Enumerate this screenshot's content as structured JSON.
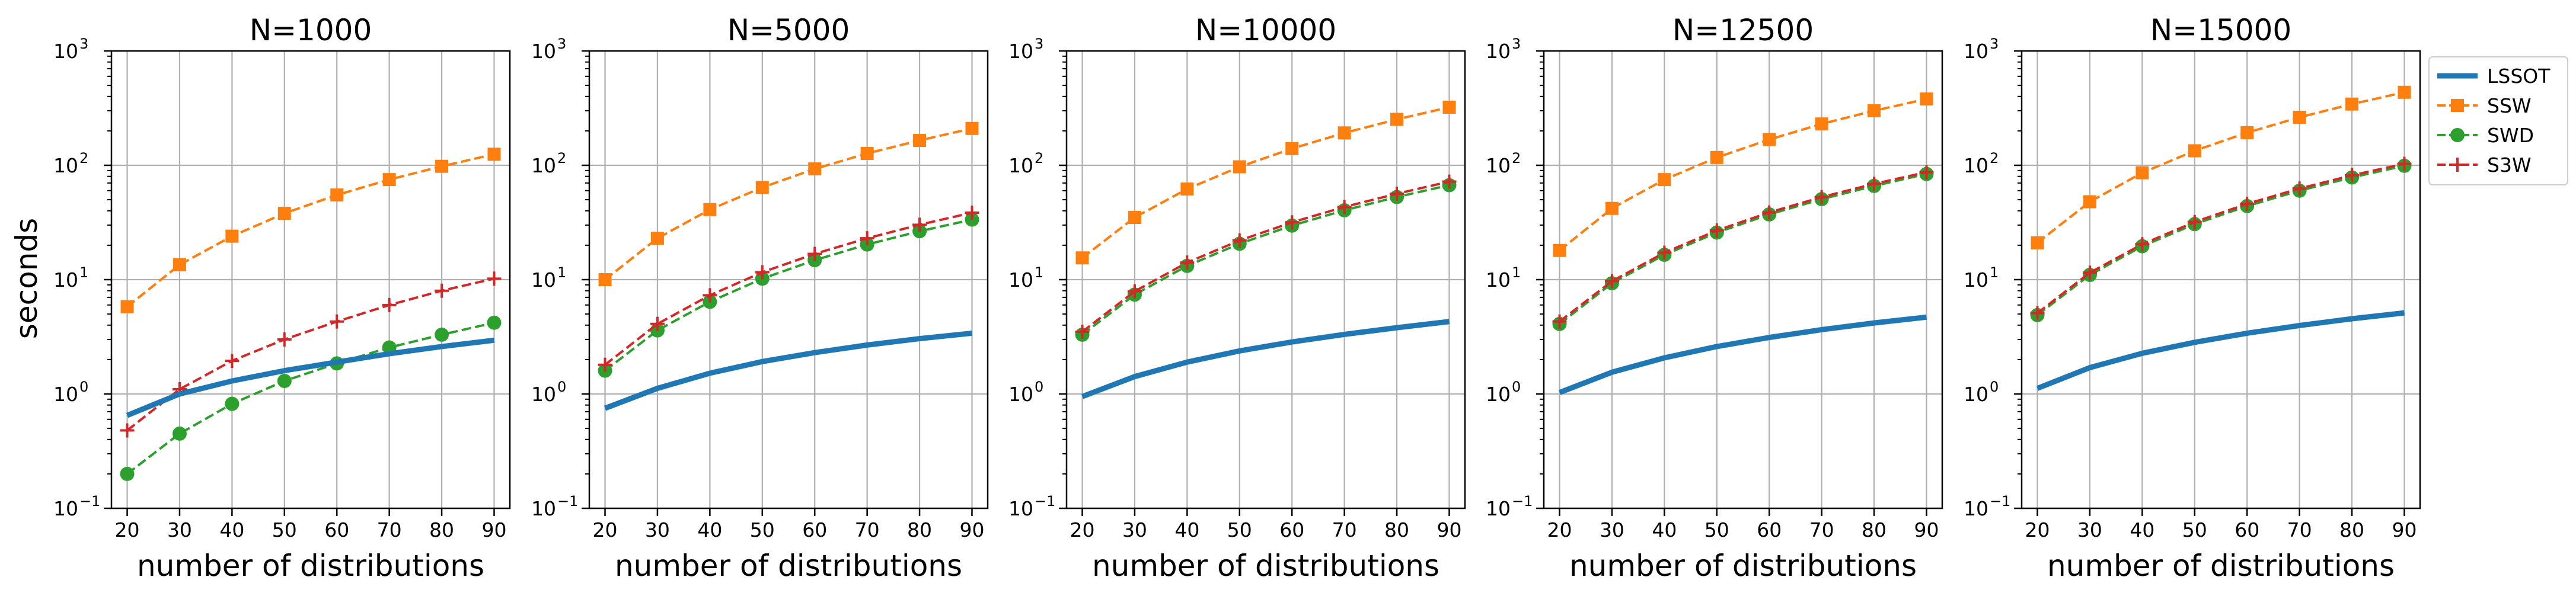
{
  "colors": {
    "LSSOT": "#1f77b4",
    "SSW": "#ff7f0e",
    "SWD": "#2ca02c",
    "S3W": "#d62728",
    "grid": "#b0b0b0",
    "frame": "#000000"
  },
  "shared": {
    "ylabel": "seconds",
    "xlabel": "number of distributions",
    "x_ticks": [
      20,
      30,
      40,
      50,
      60,
      70,
      80,
      90
    ],
    "y_ticks": [
      {
        "value": 0.1,
        "base": "10",
        "exp": "−1"
      },
      {
        "value": 1,
        "base": "10",
        "exp": "0"
      },
      {
        "value": 10,
        "base": "10",
        "exp": "1"
      },
      {
        "value": 100,
        "base": "10",
        "exp": "2"
      },
      {
        "value": 1000,
        "base": "10",
        "exp": "3"
      }
    ]
  },
  "legend": {
    "placement": "outside-right-top",
    "entries": [
      {
        "name": "LSSOT",
        "style": "solid-thick",
        "marker": "none"
      },
      {
        "name": "SSW",
        "style": "dashed",
        "marker": "square"
      },
      {
        "name": "SWD",
        "style": "dashed",
        "marker": "circle"
      },
      {
        "name": "S3W",
        "style": "dashed",
        "marker": "plus"
      }
    ]
  },
  "chart_data": [
    {
      "type": "line",
      "title": "N=1000",
      "xlabel": "number of distributions",
      "ylabel": "seconds",
      "yscale": "log",
      "ylim": [
        0.1,
        1000
      ],
      "xlim": [
        17,
        93
      ],
      "grid": true,
      "x": [
        20,
        30,
        40,
        50,
        60,
        70,
        80,
        90
      ],
      "series": [
        {
          "name": "LSSOT",
          "values": [
            0.65,
            1.0,
            1.3,
            1.6,
            1.9,
            2.25,
            2.6,
            2.95
          ]
        },
        {
          "name": "SSW",
          "values": [
            5.8,
            13.5,
            24,
            38,
            55,
            75,
            98,
            125
          ]
        },
        {
          "name": "SWD",
          "values": [
            0.2,
            0.45,
            0.82,
            1.3,
            1.85,
            2.55,
            3.3,
            4.2
          ]
        },
        {
          "name": "S3W",
          "values": [
            0.48,
            1.1,
            1.95,
            3.0,
            4.3,
            6.0,
            8.0,
            10.2
          ]
        }
      ]
    },
    {
      "type": "line",
      "title": "N=5000",
      "xlabel": "number of distributions",
      "ylabel": "",
      "yscale": "log",
      "ylim": [
        0.1,
        1000
      ],
      "xlim": [
        17,
        93
      ],
      "grid": true,
      "x": [
        20,
        30,
        40,
        50,
        60,
        70,
        80,
        90
      ],
      "series": [
        {
          "name": "LSSOT",
          "values": [
            0.75,
            1.12,
            1.52,
            1.92,
            2.3,
            2.68,
            3.05,
            3.4
          ]
        },
        {
          "name": "SSW",
          "values": [
            10,
            23,
            41,
            64,
            93,
            127,
            165,
            210
          ]
        },
        {
          "name": "SWD",
          "values": [
            1.6,
            3.6,
            6.4,
            10.2,
            14.8,
            20.3,
            26.5,
            33.5
          ]
        },
        {
          "name": "S3W",
          "values": [
            1.8,
            4.1,
            7.3,
            11.6,
            16.8,
            23,
            30.2,
            38.5
          ]
        }
      ]
    },
    {
      "type": "line",
      "title": "N=10000",
      "xlabel": "number of distributions",
      "ylabel": "",
      "yscale": "log",
      "ylim": [
        0.1,
        1000
      ],
      "xlim": [
        17,
        93
      ],
      "grid": true,
      "x": [
        20,
        30,
        40,
        50,
        60,
        70,
        80,
        90
      ],
      "series": [
        {
          "name": "LSSOT",
          "values": [
            0.95,
            1.42,
            1.9,
            2.38,
            2.85,
            3.32,
            3.8,
            4.3
          ]
        },
        {
          "name": "SSW",
          "values": [
            15.5,
            35,
            62,
            97,
            140,
            192,
            252,
            322
          ]
        },
        {
          "name": "SWD",
          "values": [
            3.3,
            7.4,
            13.2,
            20.6,
            29.7,
            40.4,
            52.8,
            67
          ]
        },
        {
          "name": "S3W",
          "values": [
            3.5,
            7.9,
            14.1,
            22,
            31.7,
            43.2,
            56.4,
            72
          ]
        }
      ]
    },
    {
      "type": "line",
      "title": "N=12500",
      "xlabel": "number of distributions",
      "ylabel": "",
      "yscale": "log",
      "ylim": [
        0.1,
        1000
      ],
      "xlim": [
        17,
        93
      ],
      "grid": true,
      "x": [
        20,
        30,
        40,
        50,
        60,
        70,
        80,
        90
      ],
      "series": [
        {
          "name": "LSSOT",
          "values": [
            1.03,
            1.55,
            2.07,
            2.6,
            3.12,
            3.65,
            4.18,
            4.7
          ]
        },
        {
          "name": "SSW",
          "values": [
            18,
            42,
            75,
            117,
            168,
            230,
            300,
            380
          ]
        },
        {
          "name": "SWD",
          "values": [
            4.1,
            9.3,
            16.5,
            25.8,
            37.2,
            50.6,
            66,
            84
          ]
        },
        {
          "name": "S3W",
          "values": [
            4.3,
            9.7,
            17.2,
            26.9,
            38.7,
            52.7,
            68.8,
            87
          ]
        }
      ]
    },
    {
      "type": "line",
      "title": "N=15000",
      "xlabel": "number of distributions",
      "ylabel": "",
      "yscale": "log",
      "ylim": [
        0.1,
        1000
      ],
      "xlim": [
        17,
        93
      ],
      "grid": true,
      "x": [
        20,
        30,
        40,
        50,
        60,
        70,
        80,
        90
      ],
      "series": [
        {
          "name": "LSSOT",
          "values": [
            1.12,
            1.7,
            2.27,
            2.83,
            3.4,
            3.97,
            4.55,
            5.12
          ]
        },
        {
          "name": "SSW",
          "values": [
            21,
            48,
            86,
            134,
            193,
            263,
            343,
            435
          ]
        },
        {
          "name": "SWD",
          "values": [
            4.9,
            11,
            19.6,
            30.6,
            44,
            60,
            78.3,
            99
          ]
        },
        {
          "name": "S3W",
          "values": [
            5.1,
            11.5,
            20.4,
            31.9,
            46,
            62.6,
            81.7,
            103
          ]
        }
      ]
    }
  ]
}
